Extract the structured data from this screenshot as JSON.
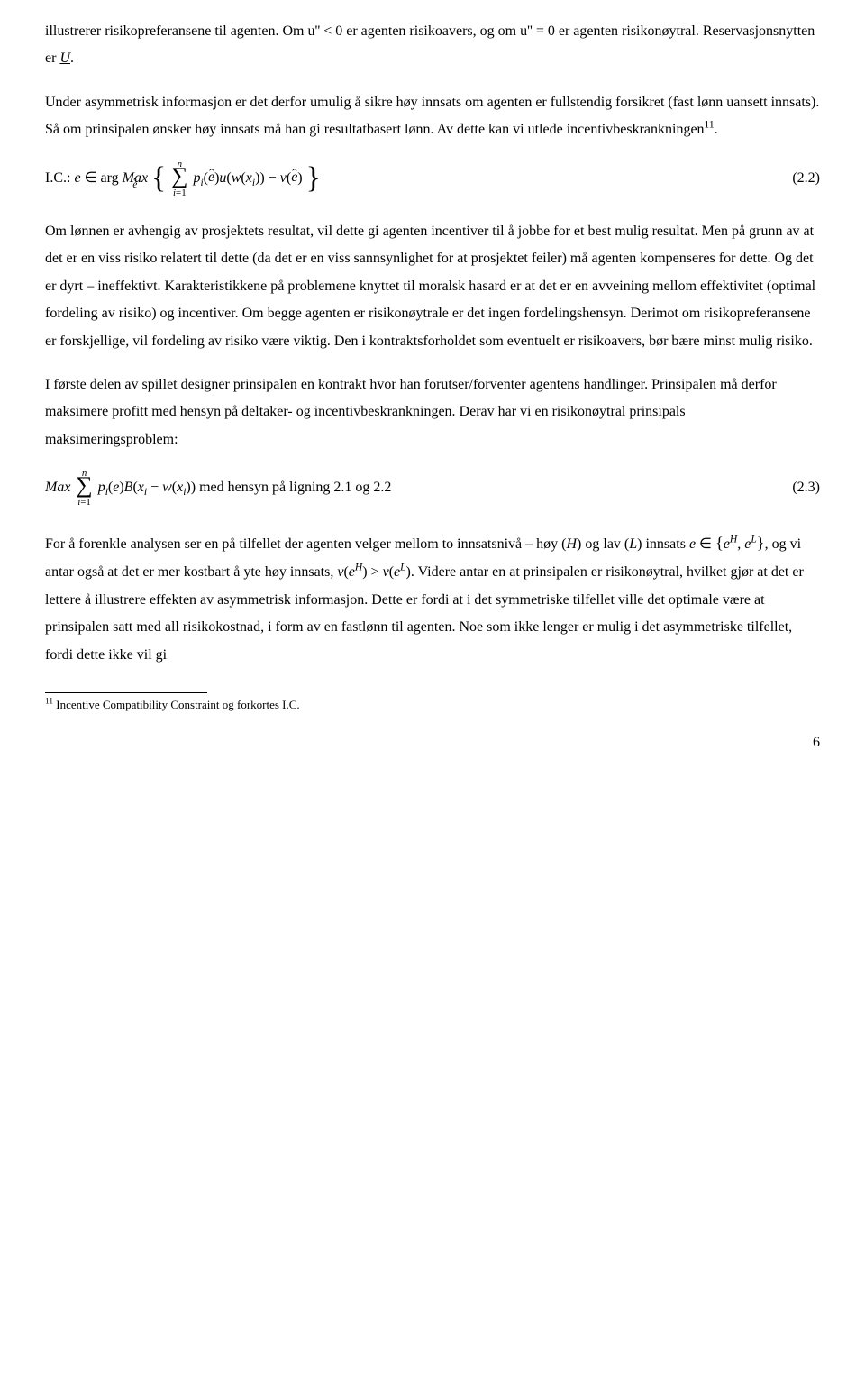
{
  "para1_a": "illustrerer risikopreferansene til agenten. Om ",
  "para1_m1": "u'' < 0",
  "para1_b": " er agenten risikoavers, og om ",
  "para1_m2": "u'' = 0",
  "para1_c": " er agenten risikonøytral. Reservasjonsnytten er ",
  "para1_m3": "U",
  "para1_d": ".",
  "para2": "Under asymmetrisk informasjon er det derfor umulig å sikre høy innsats om agenten er fullstendig forsikret (fast lønn uansett innsats). Så om prinsipalen ønsker høy innsats må han gi resultatbasert lønn. Av dette kan vi utlede incentivbeskrankningen",
  "para2_fn": "11",
  "para2_end": ".",
  "eq1_prefix": "I.C.: ",
  "eq1_num": "(2.2)",
  "para3": "Om lønnen er avhengig av prosjektets resultat, vil dette gi agenten incentiver til å jobbe for et best mulig resultat. Men på grunn av at det er en viss risiko relatert til dette (da det er en viss sannsynlighet for at prosjektet feiler) må agenten kompenseres for dette. Og det er dyrt – ineffektivt. Karakteristikkene på problemene knyttet til moralsk hasard er at det er en avveining mellom effektivitet (optimal fordeling av risiko) og incentiver. Om begge agenten er risikonøytrale er det ingen fordelingshensyn. Derimot om risikopreferansene er forskjellige, vil fordeling av risiko være viktig. Den i kontraktsforholdet som eventuelt er risikoavers, bør bære minst mulig risiko.",
  "para4": "I første delen av spillet designer prinsipalen en kontrakt hvor han forutser/forventer agentens handlinger. Prinsipalen må derfor maksimere profitt med hensyn på deltaker- og incentivbeskrankningen. Derav har vi en risikonøytral prinsipals maksimeringsproblem:",
  "eq2_tail": " med hensyn på ligning 2.1 og 2.2",
  "eq2_num": "(2.3)",
  "para5_a": "For å forenkle analysen ser en på tilfellet der agenten velger mellom to innsatsnivå – høy (",
  "para5_H": "H",
  "para5_b": ") og lav (",
  "para5_L": "L",
  "para5_c": ") innsats ",
  "para5_d": ", og vi antar også at det er mer kostbart å yte høy innsats, ",
  "para5_e": ". Videre antar en at prinsipalen er risikonøytral, hvilket gjør at det er lettere å illustrere effekten av asymmetrisk informasjon. Dette er fordi at i det symmetriske tilfellet ville det optimale være at prinsipalen satt med all risikokostnad, i form av en fastlønn til agenten. Noe som ikke lenger er mulig i det asymmetriske tilfellet, fordi dette ikke vil gi",
  "footnote_num": "11",
  "footnote_text": " Incentive Compatibility Constraint og forkortes I.C.",
  "page_number": "6"
}
